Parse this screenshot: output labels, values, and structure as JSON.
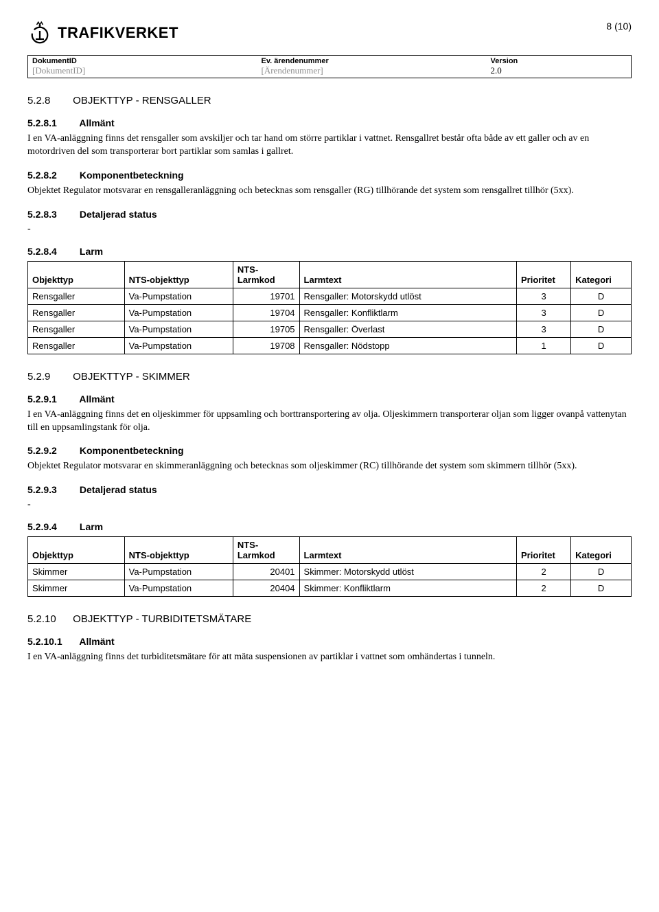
{
  "page": {
    "number": "8 (10)"
  },
  "brand": {
    "name": "TRAFIKVERKET"
  },
  "meta": {
    "col1_label": "DokumentID",
    "col1_value": "[DokumentID]",
    "col2_label": "Ev. ärendenummer",
    "col2_value": "[Ärendenummer]",
    "col3_label": "Version",
    "col3_value": "2.0"
  },
  "larm_headers": {
    "objekttyp": "Objekttyp",
    "nts_objekttyp": "NTS-objekttyp",
    "nts_larmkod": "NTS-\nLarmkod",
    "larmtext": "Larmtext",
    "prioritet": "Prioritet",
    "kategori": "Kategori"
  },
  "s528": {
    "heading_num": "5.2.8",
    "heading_title": "OBJEKTTYP - RENSGALLER",
    "h1_num": "5.2.8.1",
    "h1_title": "Allmänt",
    "h1_p1": "I en VA-anläggning finns det rensgaller som avskiljer och tar hand om större partiklar i vattnet. Rensgallret består ofta både av ett galler och av en motordriven del som transporterar bort partiklar som samlas i gallret.",
    "h2_num": "5.2.8.2",
    "h2_title": "Komponentbeteckning",
    "h2_p1": "Objektet Regulator motsvarar en rensgalleranläggning och betecknas som rensgaller (RG) tillhörande det system som rensgallret tillhör (5xx).",
    "h3_num": "5.2.8.3",
    "h3_title": "Detaljerad status",
    "h4_num": "5.2.8.4",
    "h4_title": "Larm",
    "rows": [
      {
        "obj": "Rensgaller",
        "nts": "Va-Pumpstation",
        "kod": "19701",
        "text": "Rensgaller: Motorskydd utlöst",
        "prio": "3",
        "kat": "D"
      },
      {
        "obj": "Rensgaller",
        "nts": "Va-Pumpstation",
        "kod": "19704",
        "text": "Rensgaller: Konfliktlarm",
        "prio": "3",
        "kat": "D"
      },
      {
        "obj": "Rensgaller",
        "nts": "Va-Pumpstation",
        "kod": "19705",
        "text": "Rensgaller: Överlast",
        "prio": "3",
        "kat": "D"
      },
      {
        "obj": "Rensgaller",
        "nts": "Va-Pumpstation",
        "kod": "19708",
        "text": "Rensgaller: Nödstopp",
        "prio": "1",
        "kat": "D"
      }
    ]
  },
  "s529": {
    "heading_num": "5.2.9",
    "heading_title": "OBJEKTTYP - SKIMMER",
    "h1_num": "5.2.9.1",
    "h1_title": "Allmänt",
    "h1_p1": "I en VA-anläggning finns det en oljeskimmer för uppsamling och borttransportering av olja. Oljeskimmern transporterar oljan som ligger ovanpå vattenytan till en uppsamlingstank för olja.",
    "h2_num": "5.2.9.2",
    "h2_title": "Komponentbeteckning",
    "h2_p1": "Objektet Regulator motsvarar en skimmeranläggning och betecknas som oljeskimmer (RC) tillhörande det system som skimmern tillhör (5xx).",
    "h3_num": "5.2.9.3",
    "h3_title": "Detaljerad status",
    "h4_num": "5.2.9.4",
    "h4_title": "Larm",
    "rows": [
      {
        "obj": "Skimmer",
        "nts": "Va-Pumpstation",
        "kod": "20401",
        "text": "Skimmer: Motorskydd utlöst",
        "prio": "2",
        "kat": "D"
      },
      {
        "obj": "Skimmer",
        "nts": "Va-Pumpstation",
        "kod": "20404",
        "text": "Skimmer: Konfliktlarm",
        "prio": "2",
        "kat": "D"
      }
    ]
  },
  "s5210": {
    "heading_num": "5.2.10",
    "heading_title": "OBJEKTTYP - TURBIDITETSMÄTARE",
    "h1_num": "5.2.10.1",
    "h1_title": "Allmänt",
    "h1_p1": "I en VA-anläggning finns det turbiditetsmätare för att mäta suspensionen av partiklar i vattnet som omhändertas i tunneln."
  }
}
